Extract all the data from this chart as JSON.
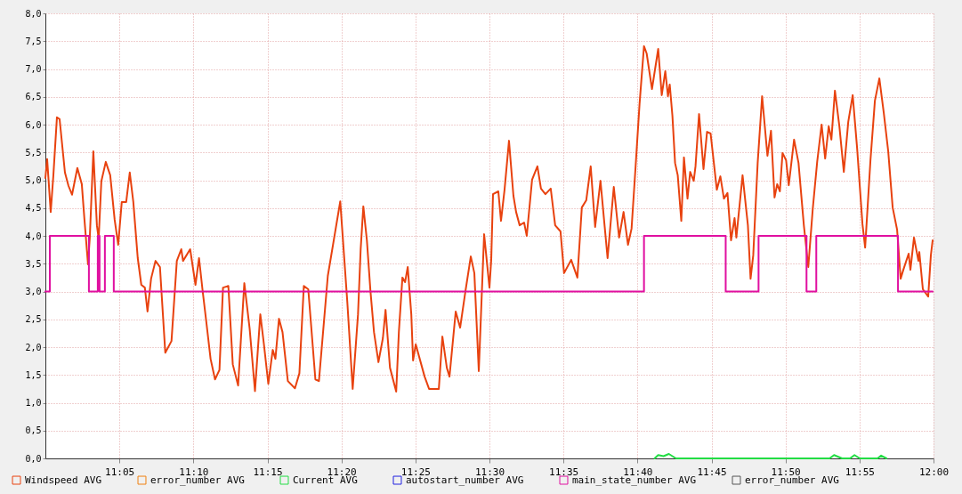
{
  "chart_data": {
    "type": "line",
    "xlim": [
      11.0,
      12.0
    ],
    "ylim": [
      0,
      8
    ],
    "xticks": [
      {
        "value": 11.0833,
        "label": "11:05"
      },
      {
        "value": 11.1667,
        "label": "11:10"
      },
      {
        "value": 11.25,
        "label": "11:15"
      },
      {
        "value": 11.3333,
        "label": "11:20"
      },
      {
        "value": 11.4167,
        "label": "11:25"
      },
      {
        "value": 11.5,
        "label": "11:30"
      },
      {
        "value": 11.5833,
        "label": "11:35"
      },
      {
        "value": 11.6667,
        "label": "11:40"
      },
      {
        "value": 11.75,
        "label": "11:45"
      },
      {
        "value": 11.8333,
        "label": "11:50"
      },
      {
        "value": 11.9167,
        "label": "11:55"
      },
      {
        "value": 12,
        "label": "12:00"
      }
    ],
    "yticks": [
      {
        "value": 0,
        "label": "0,0"
      },
      {
        "value": 0.5,
        "label": "0,5"
      },
      {
        "value": 1,
        "label": "1,0"
      },
      {
        "value": 1.5,
        "label": "1,5"
      },
      {
        "value": 2,
        "label": "2,0"
      },
      {
        "value": 2.5,
        "label": "2,5"
      },
      {
        "value": 3,
        "label": "3,0"
      },
      {
        "value": 3.5,
        "label": "3,5"
      },
      {
        "value": 4,
        "label": "4,0"
      },
      {
        "value": 4.5,
        "label": "4,5"
      },
      {
        "value": 5,
        "label": "5,0"
      },
      {
        "value": 5.5,
        "label": "5,5"
      },
      {
        "value": 6,
        "label": "6,0"
      },
      {
        "value": 6.5,
        "label": "6,5"
      },
      {
        "value": 7,
        "label": "7,0"
      },
      {
        "value": 7.5,
        "label": "7,5"
      },
      {
        "value": 8,
        "label": "8,0"
      }
    ],
    "grid": true,
    "legend": "bottom",
    "series": [
      {
        "name": "Windspeed AVG",
        "color": "#e8420f",
        "x": [
          11.0,
          11.002,
          11.006,
          11.009,
          11.013,
          11.016,
          11.022,
          11.026,
          11.03,
          11.036,
          11.041,
          11.044,
          11.048,
          11.05,
          11.054,
          11.058,
          11.06,
          11.063,
          11.068,
          11.073,
          11.078,
          11.082,
          11.086,
          11.091,
          11.095,
          11.099,
          11.104,
          11.108,
          11.112,
          11.115,
          11.119,
          11.124,
          11.129,
          11.135,
          11.142,
          11.148,
          11.153,
          11.155,
          11.163,
          11.169,
          11.173,
          11.177,
          11.181,
          11.186,
          11.191,
          11.196,
          11.2,
          11.206,
          11.211,
          11.217,
          11.224,
          11.23,
          11.236,
          11.242,
          11.246,
          11.251,
          11.256,
          11.259,
          11.263,
          11.267,
          11.273,
          11.281,
          11.286,
          11.291,
          11.296,
          11.304,
          11.308,
          11.318,
          11.325,
          11.332,
          11.34,
          11.346,
          11.352,
          11.355,
          11.358,
          11.362,
          11.366,
          11.37,
          11.375,
          11.38,
          11.383,
          11.388,
          11.395,
          11.398,
          11.402,
          11.405,
          11.408,
          11.412,
          11.414,
          11.417,
          11.427,
          11.432,
          11.443,
          11.447,
          11.452,
          11.455,
          11.462,
          11.467,
          11.473,
          11.479,
          11.483,
          11.488,
          11.494,
          11.5,
          11.502,
          11.504,
          11.51,
          11.513,
          11.517,
          11.522,
          11.527,
          11.53,
          11.534,
          11.539,
          11.542,
          11.548,
          11.554,
          11.558,
          11.563,
          11.569,
          11.574,
          11.58,
          11.584,
          11.592,
          11.599,
          11.604,
          11.609,
          11.614,
          11.619,
          11.625,
          11.633,
          11.64,
          11.646,
          11.651,
          11.656,
          11.66,
          11.665,
          11.669,
          11.674,
          11.677,
          11.683,
          11.69,
          11.694,
          11.698,
          11.701,
          11.703,
          11.706,
          11.709,
          11.712,
          11.716,
          11.719,
          11.723,
          11.726,
          11.73,
          11.732,
          11.736,
          11.741,
          11.745,
          11.749,
          11.756,
          11.76,
          11.764,
          11.768,
          11.772,
          11.776,
          11.778,
          11.785,
          11.791,
          11.794,
          11.797,
          11.802,
          11.807,
          11.813,
          11.817,
          11.821,
          11.824,
          11.827,
          11.83,
          11.834,
          11.837,
          11.843,
          11.848,
          11.854,
          11.859,
          11.864,
          11.869,
          11.874,
          11.878,
          11.882,
          11.885,
          11.889,
          11.894,
          11.899,
          11.904,
          11.909,
          11.914,
          11.92,
          11.923,
          11.929,
          11.934,
          11.939,
          11.944,
          11.949,
          11.954,
          11.959,
          11.963,
          11.966,
          11.972,
          11.974,
          11.978,
          11.983,
          11.984,
          11.988,
          11.994,
          11.997,
          11.999
        ],
        "values": [
          5.04,
          5.38,
          4.43,
          5.09,
          6.13,
          6.1,
          5.14,
          4.9,
          4.74,
          5.22,
          4.93,
          4.29,
          3.49,
          3.97,
          5.52,
          4.19,
          3.95,
          4.98,
          5.33,
          5.09,
          4.29,
          3.84,
          4.61,
          4.61,
          5.14,
          4.61,
          3.6,
          3.12,
          3.07,
          2.64,
          3.23,
          3.55,
          3.44,
          1.9,
          2.11,
          3.55,
          3.76,
          3.55,
          3.76,
          3.12,
          3.6,
          3.02,
          2.48,
          1.79,
          1.42,
          1.59,
          3.07,
          3.1,
          1.69,
          1.31,
          3.15,
          2.33,
          1.21,
          2.59,
          2.06,
          1.34,
          1.95,
          1.79,
          2.51,
          2.27,
          1.39,
          1.26,
          1.53,
          3.1,
          3.04,
          1.42,
          1.39,
          3.28,
          3.95,
          4.62,
          2.8,
          1.25,
          2.59,
          3.76,
          4.53,
          3.92,
          3.01,
          2.27,
          1.73,
          2.16,
          2.67,
          1.63,
          1.2,
          2.27,
          3.25,
          3.17,
          3.44,
          2.59,
          1.76,
          2.05,
          1.47,
          1.25,
          1.25,
          2.19,
          1.63,
          1.47,
          2.64,
          2.35,
          3.01,
          3.63,
          3.33,
          1.57,
          4.03,
          3.07,
          3.57,
          4.75,
          4.8,
          4.27,
          4.83,
          5.71,
          4.72,
          4.43,
          4.19,
          4.24,
          4.0,
          5.01,
          5.25,
          4.85,
          4.75,
          4.85,
          4.19,
          4.08,
          3.33,
          3.57,
          3.25,
          4.51,
          4.64,
          5.25,
          4.16,
          4.99,
          3.6,
          4.88,
          3.97,
          4.43,
          3.84,
          4.13,
          5.36,
          6.37,
          7.41,
          7.28,
          6.64,
          7.36,
          6.53,
          6.96,
          6.51,
          6.72,
          6.16,
          5.31,
          5.09,
          4.27,
          5.41,
          4.67,
          5.15,
          4.99,
          5.25,
          6.19,
          5.2,
          5.87,
          5.84,
          4.83,
          5.07,
          4.67,
          4.77,
          3.92,
          4.32,
          3.97,
          5.09,
          4.19,
          3.23,
          3.65,
          5.31,
          6.51,
          5.44,
          5.89,
          4.69,
          4.93,
          4.8,
          5.49,
          5.36,
          4.91,
          5.73,
          5.31,
          4.19,
          3.44,
          4.48,
          5.33,
          6.0,
          5.39,
          5.97,
          5.73,
          6.61,
          5.97,
          5.15,
          6.05,
          6.53,
          5.57,
          4.21,
          3.79,
          5.36,
          6.43,
          6.83,
          6.21,
          5.52,
          4.51,
          4.11,
          3.23,
          3.39,
          3.68,
          3.39,
          3.97,
          3.55,
          3.71,
          3.04,
          2.91,
          3.65,
          3.92
        ]
      },
      {
        "name": "error_number AVG",
        "color": "#f08010"
      },
      {
        "name": "Current AVG",
        "color": "#22dd44",
        "x": [
          11.686,
          11.69,
          11.696,
          11.702,
          11.71,
          11.883,
          11.888,
          11.897,
          11.906,
          11.911,
          11.917,
          11.937,
          11.941,
          11.947
        ],
        "values": [
          0,
          0.06,
          0.04,
          0.08,
          0,
          0,
          0.06,
          0,
          0,
          0.06,
          0,
          0,
          0.05,
          0
        ]
      },
      {
        "name": "autostart_number AVG",
        "color": "#2020e0"
      },
      {
        "name": "main_state_number AVG",
        "color": "#e010a0",
        "type": "step",
        "x": [
          11.0,
          11.005,
          11.049,
          11.059,
          11.061,
          11.067,
          11.077,
          11.674,
          11.766,
          11.803,
          11.857,
          11.868,
          11.96,
          11.999
        ],
        "values": [
          3,
          4,
          3,
          4,
          3,
          4,
          3,
          4,
          3,
          4,
          3,
          4,
          3,
          3
        ]
      },
      {
        "name": "error_number AVG",
        "color": "#555555"
      }
    ]
  }
}
